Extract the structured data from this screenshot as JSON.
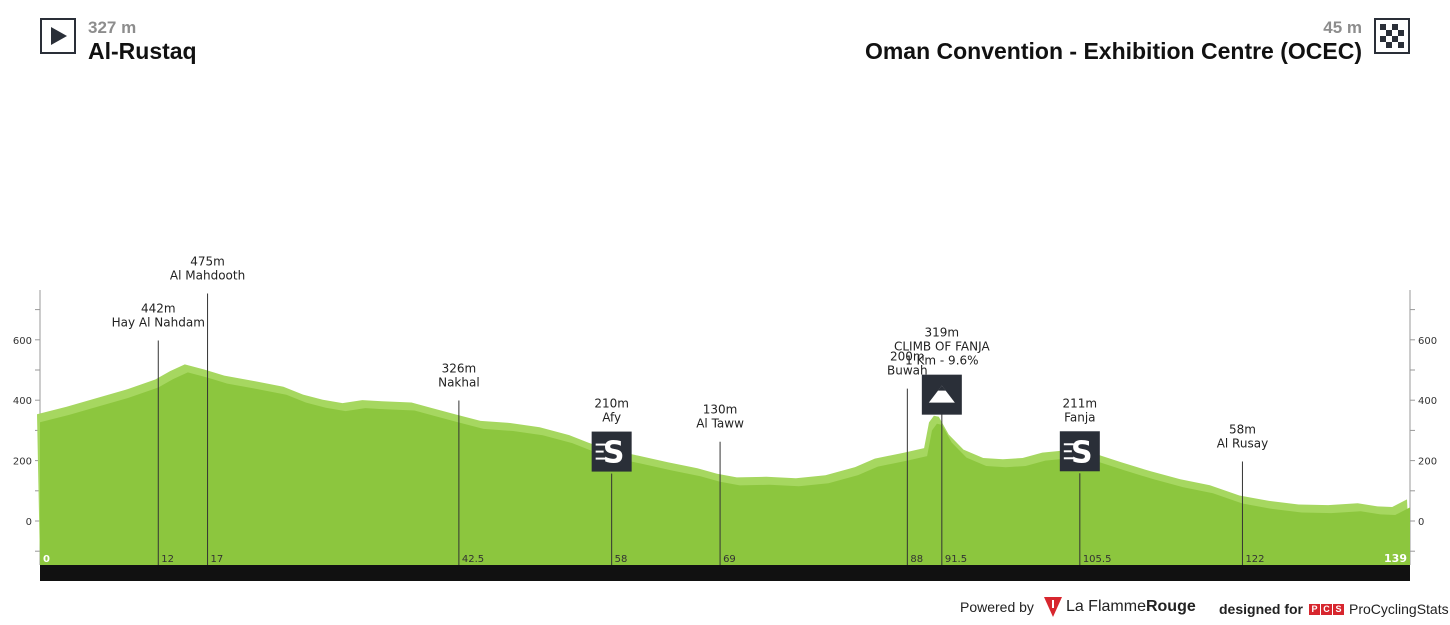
{
  "header": {
    "start": {
      "altitude": "327 m",
      "name": "Al-Rustaq",
      "icon": "play-icon"
    },
    "finish": {
      "altitude": "45 m",
      "name": "Oman Convention - Exhibition Centre (OCEC)",
      "icon": "checkered-flag-icon"
    }
  },
  "footer": {
    "powered_by": "Powered by",
    "powered_brand_1": "La Flamme",
    "powered_brand_2": "Rouge",
    "designed_for": "designed for",
    "pcs_letters": [
      "P",
      "C",
      "S"
    ],
    "pcs_name": "ProCyclingStats"
  },
  "colors": {
    "terrain": "#8cc63e",
    "terrain_light": "#a6d760",
    "baseline_bar": "#111111",
    "icon_box": "#2a2f38"
  },
  "chart_data": {
    "type": "area",
    "xlabel": "",
    "ylabel": "",
    "xlim": [
      0,
      139
    ],
    "ylim": [
      -150,
      790
    ],
    "y_ticks": [
      0,
      200,
      400,
      600
    ],
    "x_end_labels": [
      "0",
      "139"
    ],
    "profile": [
      [
        0,
        327
      ],
      [
        3,
        352
      ],
      [
        6,
        380
      ],
      [
        9,
        408
      ],
      [
        12,
        442
      ],
      [
        13.5,
        470
      ],
      [
        15,
        492
      ],
      [
        17,
        475
      ],
      [
        19,
        455
      ],
      [
        22,
        437
      ],
      [
        25,
        418
      ],
      [
        27,
        392
      ],
      [
        29,
        375
      ],
      [
        31,
        364
      ],
      [
        33,
        374
      ],
      [
        35,
        370
      ],
      [
        38,
        366
      ],
      [
        40,
        348
      ],
      [
        42.5,
        326
      ],
      [
        45,
        305
      ],
      [
        48,
        298
      ],
      [
        51,
        284
      ],
      [
        54,
        258
      ],
      [
        56,
        232
      ],
      [
        58,
        210
      ],
      [
        61,
        190
      ],
      [
        64,
        168
      ],
      [
        67,
        148
      ],
      [
        69,
        130
      ],
      [
        71,
        118
      ],
      [
        74,
        120
      ],
      [
        77,
        115
      ],
      [
        80,
        125
      ],
      [
        83,
        152
      ],
      [
        85,
        180
      ],
      [
        88,
        200
      ],
      [
        90,
        215
      ],
      [
        90.5,
        300
      ],
      [
        91,
        322
      ],
      [
        91.5,
        319
      ],
      [
        92.5,
        260
      ],
      [
        94,
        210
      ],
      [
        96,
        182
      ],
      [
        98,
        178
      ],
      [
        100,
        182
      ],
      [
        102,
        200
      ],
      [
        105.5,
        211
      ],
      [
        107,
        200
      ],
      [
        110,
        168
      ],
      [
        113,
        138
      ],
      [
        116,
        112
      ],
      [
        119,
        92
      ],
      [
        122,
        58
      ],
      [
        125,
        40
      ],
      [
        128,
        28
      ],
      [
        131,
        26
      ],
      [
        134,
        32
      ],
      [
        136,
        22
      ],
      [
        137.5,
        20
      ],
      [
        139,
        45
      ]
    ],
    "markers": [
      {
        "km": "12",
        "x": 12,
        "alt": 442,
        "alt_label": "442m",
        "name": "Hay Al Nahdam",
        "label_top": 442,
        "icon": ""
      },
      {
        "km": "17",
        "x": 17,
        "alt": 475,
        "alt_label": "475m",
        "name": "Al Mahdooth",
        "label_top": 475,
        "icon": ""
      },
      {
        "km": "42.5",
        "x": 42.5,
        "alt": 326,
        "alt_label": "326m",
        "name": "Nakhal",
        "label_top": 326,
        "icon": ""
      },
      {
        "km": "58",
        "x": 58,
        "alt": 210,
        "alt_label": "210m",
        "name": "Afy",
        "label_top": 210,
        "icon": "sprint-icon"
      },
      {
        "km": "69",
        "x": 69,
        "alt": 130,
        "alt_label": "130m",
        "name": "Al Taww",
        "label_top": 130,
        "icon": ""
      },
      {
        "km": "88",
        "x": 88,
        "alt": 200,
        "alt_label": "200m",
        "name": "Buwah",
        "label_top": 200,
        "icon": ""
      },
      {
        "km": "91.5",
        "x": 91.5,
        "alt": 319,
        "alt_label": "319m",
        "name": "CLIMB OF FANJA",
        "sub": "1 Km - 9.6%",
        "label_top": 319,
        "icon": "mountain-icon"
      },
      {
        "km": "105.5",
        "x": 105.5,
        "alt": 211,
        "alt_label": "211m",
        "name": "Fanja",
        "label_top": 211,
        "icon": "sprint-icon"
      },
      {
        "km": "122",
        "x": 122,
        "alt": 58,
        "alt_label": "58m",
        "name": "Al Rusay",
        "label_top": 58,
        "icon": ""
      }
    ]
  }
}
